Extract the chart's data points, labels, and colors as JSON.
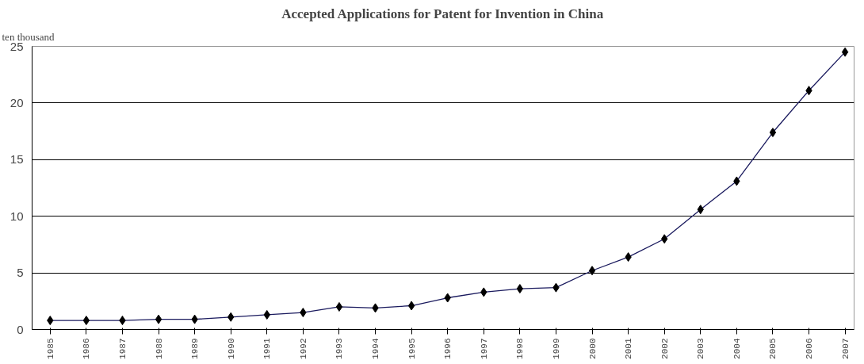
{
  "chart_data": {
    "type": "line",
    "title": "Accepted Applications for Patent for Invention in China",
    "ylabel": "ten thousand",
    "categories": [
      "1985",
      "1986",
      "1987",
      "1988",
      "1989",
      "1990",
      "1991",
      "1992",
      "1993",
      "1994",
      "1995",
      "1996",
      "1997",
      "1998",
      "1999",
      "2000",
      "2001",
      "2002",
      "2003",
      "2004",
      "2005",
      "2006",
      "2007"
    ],
    "series": [
      {
        "color": "#1a1a5e",
        "values": [
          0.8,
          0.8,
          0.8,
          0.9,
          0.9,
          1.1,
          1.3,
          1.5,
          2.0,
          1.9,
          2.1,
          2.8,
          3.3,
          3.6,
          3.7,
          5.2,
          6.4,
          8.0,
          10.6,
          13.1,
          17.4,
          21.1,
          24.5
        ]
      }
    ],
    "ylim": [
      0,
      25
    ],
    "yticks": [
      0,
      5,
      10,
      15,
      20,
      25
    ],
    "grid": "y",
    "marker": "diamond",
    "line_style": "solid"
  }
}
